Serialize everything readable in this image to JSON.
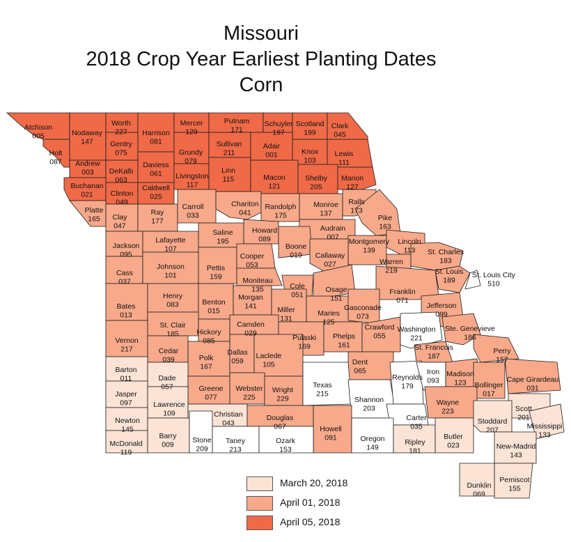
{
  "title_lines": [
    "Missouri",
    "2018 Crop Year Earliest Planting Dates",
    "Corn"
  ],
  "colors": {
    "march20": "#fbe3d6",
    "april01": "#f7a98a",
    "april05": "#f06a48",
    "none": "#ffffff",
    "border": "#1a1a1a"
  },
  "legend": [
    {
      "key": "march20",
      "label": "March 20, 2018"
    },
    {
      "key": "april01",
      "label": "April 01, 2018"
    },
    {
      "key": "april05",
      "label": "April 05, 2018"
    }
  ],
  "counties": [
    {
      "name": "Atchison",
      "code": "005",
      "cat": "april05"
    },
    {
      "name": "Nodaway",
      "code": "147",
      "cat": "april05"
    },
    {
      "name": "Worth",
      "code": "227",
      "cat": "april05"
    },
    {
      "name": "Harrison",
      "code": "081",
      "cat": "april05"
    },
    {
      "name": "Mercer",
      "code": "129",
      "cat": "april05"
    },
    {
      "name": "Putnam",
      "code": "171",
      "cat": "april05"
    },
    {
      "name": "Schuyler",
      "code": "197",
      "cat": "april05"
    },
    {
      "name": "Scotland",
      "code": "199",
      "cat": "april05"
    },
    {
      "name": "Clark",
      "code": "045",
      "cat": "april05"
    },
    {
      "name": "Holt",
      "code": "087",
      "cat": "april05"
    },
    {
      "name": "Gentry",
      "code": "075",
      "cat": "april05"
    },
    {
      "name": "Andrew",
      "code": "003",
      "cat": "april05"
    },
    {
      "name": "DeKalb",
      "code": "063",
      "cat": "april05"
    },
    {
      "name": "Daviess",
      "code": "061",
      "cat": "april05"
    },
    {
      "name": "Grundy",
      "code": "079",
      "cat": "april05"
    },
    {
      "name": "Sullivan",
      "code": "211",
      "cat": "april05"
    },
    {
      "name": "Adair",
      "code": "001",
      "cat": "april05"
    },
    {
      "name": "Knox",
      "code": "103",
      "cat": "april05"
    },
    {
      "name": "Lewis",
      "code": "111",
      "cat": "april05"
    },
    {
      "name": "Buchanan",
      "code": "021",
      "cat": "april05"
    },
    {
      "name": "Clinton",
      "code": "049",
      "cat": "april05"
    },
    {
      "name": "Caldwell",
      "code": "025",
      "cat": "april05"
    },
    {
      "name": "Livingston",
      "code": "117",
      "cat": "april05"
    },
    {
      "name": "Linn",
      "code": "115",
      "cat": "april05"
    },
    {
      "name": "Macon",
      "code": "121",
      "cat": "april05"
    },
    {
      "name": "Shelby",
      "code": "205",
      "cat": "april05"
    },
    {
      "name": "Marion",
      "code": "127",
      "cat": "april05"
    },
    {
      "name": "Platte",
      "code": "165",
      "cat": "april01"
    },
    {
      "name": "Clay",
      "code": "047",
      "cat": "april01"
    },
    {
      "name": "Ray",
      "code": "177",
      "cat": "april01"
    },
    {
      "name": "Carroll",
      "code": "033",
      "cat": "april01"
    },
    {
      "name": "Chariton",
      "code": "041",
      "cat": "april01"
    },
    {
      "name": "Randolph",
      "code": "175",
      "cat": "april01"
    },
    {
      "name": "Monroe",
      "code": "137",
      "cat": "april01"
    },
    {
      "name": "Ralls",
      "code": "173",
      "cat": "april01"
    },
    {
      "name": "Pike",
      "code": "163",
      "cat": "april01"
    },
    {
      "name": "Jackson",
      "code": "095",
      "cat": "april01"
    },
    {
      "name": "Lafayette",
      "code": "107",
      "cat": "april01"
    },
    {
      "name": "Saline",
      "code": "195",
      "cat": "april01"
    },
    {
      "name": "Howard",
      "code": "089",
      "cat": "april01"
    },
    {
      "name": "Audrain",
      "code": "007",
      "cat": "april01"
    },
    {
      "name": "Boone",
      "code": "019",
      "cat": "april01"
    },
    {
      "name": "Montgomery",
      "code": "139",
      "cat": "april01"
    },
    {
      "name": "Lincoln",
      "code": "113",
      "cat": "april01"
    },
    {
      "name": "Cass",
      "code": "037",
      "cat": "april01"
    },
    {
      "name": "Johnson",
      "code": "101",
      "cat": "april01"
    },
    {
      "name": "Pettis",
      "code": "159",
      "cat": "april01"
    },
    {
      "name": "Cooper",
      "code": "053",
      "cat": "april01"
    },
    {
      "name": "Callaway",
      "code": "027",
      "cat": "april01"
    },
    {
      "name": "Warren",
      "code": "219",
      "cat": "april01"
    },
    {
      "name": "St. Charles",
      "code": "183",
      "cat": "april01"
    },
    {
      "name": "St. Louis",
      "code": "189",
      "cat": "april01"
    },
    {
      "name": "St. Louis City",
      "code": "510",
      "cat": "none"
    },
    {
      "name": "Moniteau",
      "code": "135",
      "cat": "april01"
    },
    {
      "name": "Cole",
      "code": "051",
      "cat": "april01"
    },
    {
      "name": "Osage",
      "code": "151",
      "cat": "april01"
    },
    {
      "name": "Franklin",
      "code": "071",
      "cat": "april01"
    },
    {
      "name": "Bates",
      "code": "013",
      "cat": "april01"
    },
    {
      "name": "Henry",
      "code": "083",
      "cat": "april01"
    },
    {
      "name": "Benton",
      "code": "015",
      "cat": "april01"
    },
    {
      "name": "Morgan",
      "code": "141",
      "cat": "april01"
    },
    {
      "name": "Miller",
      "code": "131",
      "cat": "april01"
    },
    {
      "name": "Maries",
      "code": "125",
      "cat": "april01"
    },
    {
      "name": "Gasconade",
      "code": "073",
      "cat": "april01"
    },
    {
      "name": "Jefferson",
      "code": "099",
      "cat": "april01"
    },
    {
      "name": "St. Clair",
      "code": "185",
      "cat": "april01"
    },
    {
      "name": "Hickory",
      "code": "085",
      "cat": "april01"
    },
    {
      "name": "Camden",
      "code": "029",
      "cat": "april01"
    },
    {
      "name": "Pulaski",
      "code": "169",
      "cat": "april01"
    },
    {
      "name": "Phelps",
      "code": "161",
      "cat": "april01"
    },
    {
      "name": "Crawford",
      "code": "055",
      "cat": "april01"
    },
    {
      "name": "Washington",
      "code": "221",
      "cat": "none"
    },
    {
      "name": "Ste. Genevieve",
      "code": "186",
      "cat": "april01"
    },
    {
      "name": "Vernon",
      "code": "217",
      "cat": "april01"
    },
    {
      "name": "Cedar",
      "code": "039",
      "cat": "april01"
    },
    {
      "name": "Polk",
      "code": "167",
      "cat": "april01"
    },
    {
      "name": "Dallas",
      "code": "059",
      "cat": "april01"
    },
    {
      "name": "Laclede",
      "code": "105",
      "cat": "april01"
    },
    {
      "name": "Dent",
      "code": "065",
      "cat": "april01"
    },
    {
      "name": "St. Francois",
      "code": "187",
      "cat": "april01"
    },
    {
      "name": "Perry",
      "code": "157",
      "cat": "april01"
    },
    {
      "name": "Barton",
      "code": "011",
      "cat": "march20"
    },
    {
      "name": "Dade",
      "code": "057",
      "cat": "march20"
    },
    {
      "name": "Greene",
      "code": "077",
      "cat": "april01"
    },
    {
      "name": "Webster",
      "code": "225",
      "cat": "april01"
    },
    {
      "name": "Wright",
      "code": "229",
      "cat": "april01"
    },
    {
      "name": "Texas",
      "code": "215",
      "cat": "none"
    },
    {
      "name": "Shannon",
      "code": "203",
      "cat": "none"
    },
    {
      "name": "Reynolds",
      "code": "179",
      "cat": "none"
    },
    {
      "name": "Iron",
      "code": "093",
      "cat": "none"
    },
    {
      "name": "Madison",
      "code": "123",
      "cat": "april01"
    },
    {
      "name": "Bollinger",
      "code": "017",
      "cat": "april01"
    },
    {
      "name": "Cape Girardeau",
      "code": "031",
      "cat": "april01"
    },
    {
      "name": "Jasper",
      "code": "097",
      "cat": "march20"
    },
    {
      "name": "Lawrence",
      "code": "109",
      "cat": "march20"
    },
    {
      "name": "Christian",
      "code": "043",
      "cat": "march20"
    },
    {
      "name": "Douglas",
      "code": "067",
      "cat": "april01"
    },
    {
      "name": "Howell",
      "code": "091",
      "cat": "april01"
    },
    {
      "name": "Carter",
      "code": "035",
      "cat": "none"
    },
    {
      "name": "Wayne",
      "code": "223",
      "cat": "april01"
    },
    {
      "name": "Scott",
      "code": "201",
      "cat": "march20"
    },
    {
      "name": "Newton",
      "code": "145",
      "cat": "march20"
    },
    {
      "name": "McDonald",
      "code": "119",
      "cat": "march20"
    },
    {
      "name": "Barry",
      "code": "009",
      "cat": "march20"
    },
    {
      "name": "Stone",
      "code": "209",
      "cat": "none"
    },
    {
      "name": "Taney",
      "code": "213",
      "cat": "none"
    },
    {
      "name": "Ozark",
      "code": "153",
      "cat": "none"
    },
    {
      "name": "Oregon",
      "code": "149",
      "cat": "none"
    },
    {
      "name": "Ripley",
      "code": "181",
      "cat": "march20"
    },
    {
      "name": "Butler",
      "code": "023",
      "cat": "march20"
    },
    {
      "name": "Stoddard",
      "code": "207",
      "cat": "march20"
    },
    {
      "name": "Mississippi",
      "code": "133",
      "cat": "march20"
    },
    {
      "name": "New-Madrid",
      "code": "143",
      "cat": "march20"
    },
    {
      "name": "Pemiscot",
      "code": "155",
      "cat": "march20"
    },
    {
      "name": "Dunklin",
      "code": "069",
      "cat": "march20"
    }
  ]
}
